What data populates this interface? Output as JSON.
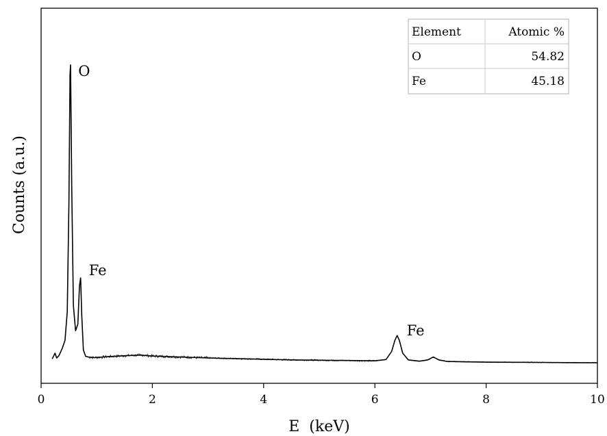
{
  "chart_data": {
    "type": "line",
    "xlabel": "E  (keV)",
    "ylabel": "Counts (a.u.)",
    "xlim": [
      0,
      10
    ],
    "ylim": [
      0,
      100
    ],
    "x_ticks": [
      "0",
      "2",
      "4",
      "6",
      "8",
      "10"
    ],
    "y_ticks_shown": false,
    "grid": false,
    "series": [
      {
        "x": [
          0.2,
          0.25,
          0.28,
          0.32,
          0.38,
          0.43,
          0.47,
          0.5,
          0.52,
          0.53,
          0.55,
          0.58,
          0.62,
          0.66,
          0.69,
          0.71,
          0.73,
          0.76,
          0.8,
          0.85,
          0.95,
          1.2,
          1.5,
          1.8,
          2.0,
          2.5,
          3.0,
          3.5,
          4.0,
          4.5,
          5.0,
          5.5,
          6.0,
          6.2,
          6.3,
          6.36,
          6.4,
          6.44,
          6.5,
          6.6,
          6.8,
          6.95,
          7.05,
          7.15,
          7.3,
          7.6,
          8.0,
          8.5,
          9.0,
          9.5,
          10.0
        ],
        "y": [
          1.2,
          3.0,
          1.5,
          2.2,
          4.5,
          7.0,
          16.0,
          50.0,
          90.0,
          93.0,
          55.0,
          18.0,
          10.0,
          12.0,
          24.0,
          26.5,
          15.0,
          4.0,
          2.0,
          1.8,
          1.6,
          1.9,
          2.2,
          2.4,
          2.1,
          1.8,
          1.5,
          1.3,
          1.1,
          0.9,
          0.8,
          0.7,
          0.6,
          1.0,
          3.5,
          7.0,
          8.5,
          7.0,
          3.0,
          0.9,
          0.5,
          0.9,
          1.8,
          0.9,
          0.4,
          0.3,
          0.2,
          0.15,
          0.1,
          0.05,
          0.0
        ]
      }
    ],
    "annotations": [
      {
        "text": "O",
        "x": 0.52,
        "y": 93.0
      },
      {
        "text": "Fe",
        "x": 0.71,
        "y": 26.5
      },
      {
        "text": "Fe",
        "x": 6.4,
        "y": 8.5
      }
    ],
    "inset_table": {
      "headers": [
        "Element",
        "Atomic %"
      ],
      "rows": [
        [
          "O",
          "54.82"
        ],
        [
          "Fe",
          "45.18"
        ]
      ]
    }
  },
  "colors": {
    "line": "#000000",
    "axis": "#000000",
    "table_grid": "#c8c8c8"
  }
}
